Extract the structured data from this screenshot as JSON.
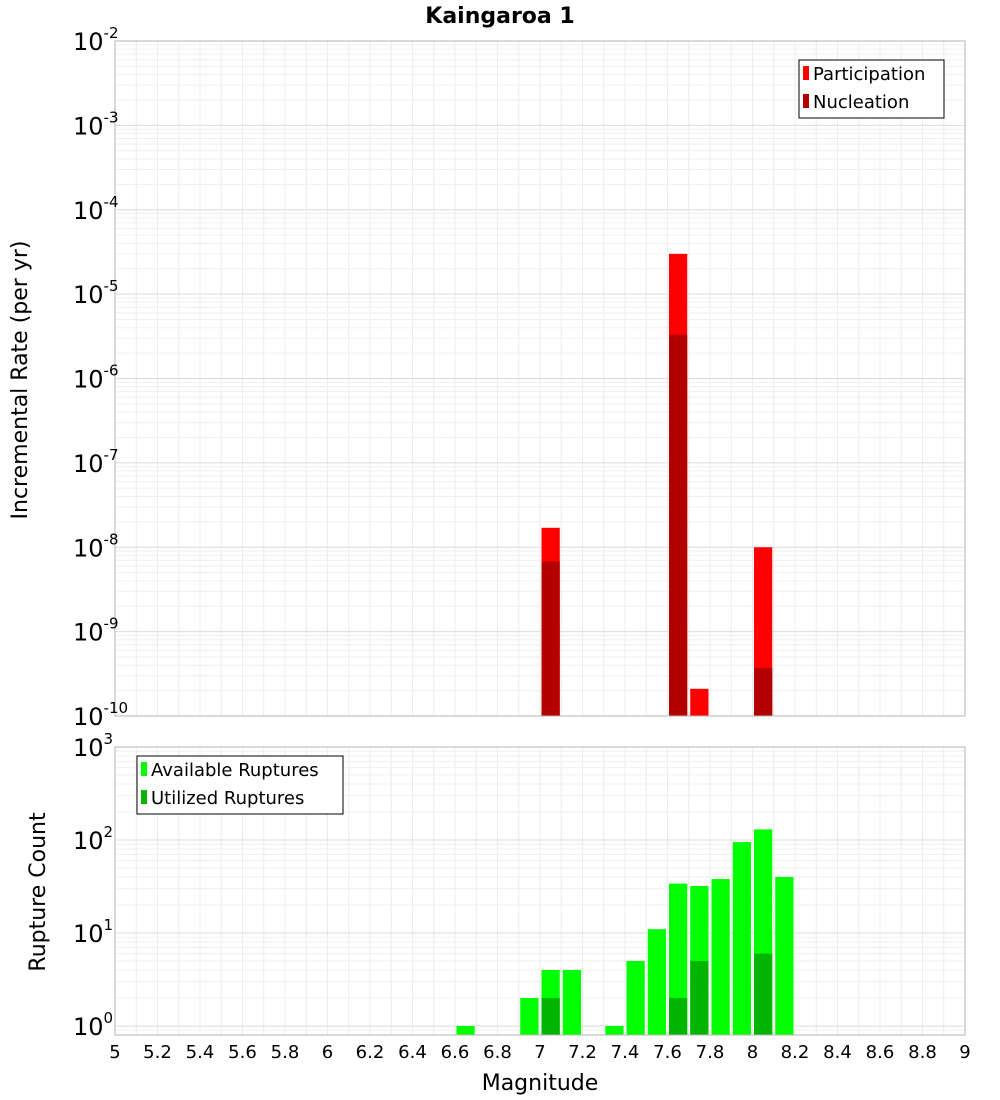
{
  "chart_data": [
    {
      "type": "bar",
      "title": "Kaingaroa 1",
      "xlabel": "",
      "ylabel": "Incremental Rate (per yr)",
      "yscale": "log",
      "ylim": [
        1e-10,
        0.01
      ],
      "xlim": [
        5,
        9
      ],
      "bar_width": 0.1,
      "grid": true,
      "legend_position": "top-right",
      "ytick_exponents": [
        "-2",
        "-3",
        "-4",
        "-5",
        "-6",
        "-7",
        "-8",
        "-9",
        "-10"
      ],
      "series": [
        {
          "name": "Participation",
          "color": "#ff0000",
          "points": [
            {
              "x": 7.05,
              "y": 1.7e-08
            },
            {
              "x": 7.65,
              "y": 3e-05
            },
            {
              "x": 7.75,
              "y": 2.1e-10
            },
            {
              "x": 8.05,
              "y": 1e-08
            }
          ]
        },
        {
          "name": "Nucleation",
          "color": "#b30000",
          "points": [
            {
              "x": 7.05,
              "y": 6.8e-09
            },
            {
              "x": 7.65,
              "y": 3.3e-06
            },
            {
              "x": 8.05,
              "y": 3.7e-10
            }
          ]
        }
      ]
    },
    {
      "type": "bar",
      "title": "",
      "xlabel": "Magnitude",
      "ylabel": "Rupture Count",
      "yscale": "log",
      "ylim": [
        0.8,
        1000
      ],
      "xlim": [
        5,
        9
      ],
      "bar_width": 0.1,
      "grid": true,
      "legend_position": "top-left",
      "ytick_exponents": [
        "3",
        "2",
        "1",
        "0"
      ],
      "x_ticks": [
        "5",
        "5.2",
        "5.4",
        "5.6",
        "5.8",
        "6",
        "6.2",
        "6.4",
        "6.6",
        "6.8",
        "7",
        "7.2",
        "7.4",
        "7.6",
        "7.8",
        "8",
        "8.2",
        "8.4",
        "8.6",
        "8.8",
        "9"
      ],
      "series": [
        {
          "name": "Available Ruptures",
          "color": "#00ff00",
          "points": [
            {
              "x": 6.65,
              "y": 1
            },
            {
              "x": 6.95,
              "y": 2
            },
            {
              "x": 7.05,
              "y": 4
            },
            {
              "x": 7.15,
              "y": 4
            },
            {
              "x": 7.35,
              "y": 1
            },
            {
              "x": 7.45,
              "y": 5
            },
            {
              "x": 7.55,
              "y": 11
            },
            {
              "x": 7.65,
              "y": 34
            },
            {
              "x": 7.75,
              "y": 32
            },
            {
              "x": 7.85,
              "y": 38
            },
            {
              "x": 7.95,
              "y": 95
            },
            {
              "x": 8.05,
              "y": 130
            },
            {
              "x": 8.15,
              "y": 40
            }
          ]
        },
        {
          "name": "Utilized Ruptures",
          "color": "#00b400",
          "points": [
            {
              "x": 7.05,
              "y": 2
            },
            {
              "x": 7.65,
              "y": 2
            },
            {
              "x": 7.75,
              "y": 5
            },
            {
              "x": 8.05,
              "y": 6
            }
          ]
        }
      ]
    }
  ]
}
